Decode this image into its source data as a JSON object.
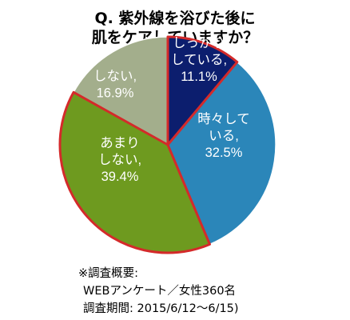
{
  "chart_data": {
    "type": "pie",
    "title_lines": [
      "Q.  紫外線を浴びた後に",
      "肌をケアしていますか？"
    ],
    "slices": [
      {
        "label_lines": [
          "しっかり",
          "している,",
          "11.1%"
        ],
        "value": 11.1,
        "color": "#0c1e6e"
      },
      {
        "label_lines": [
          "時々して",
          "いる,",
          "32.5%"
        ],
        "value": 32.5,
        "color": "#2b86b9"
      },
      {
        "label_lines": [
          "あまり",
          "しない,",
          "39.4%"
        ],
        "value": 39.4,
        "color": "#6e9a1f"
      },
      {
        "label_lines": [
          "しない,",
          "16.9%"
        ],
        "value": 16.9,
        "color": "#a3ae8c"
      }
    ],
    "highlight_outline_color": "#d42a2a"
  },
  "footnote": {
    "line1": "※調査概要:",
    "line2": "WEBアンケート／女性360名",
    "line3": "調査期間: 2015/6/12～6/15)"
  }
}
